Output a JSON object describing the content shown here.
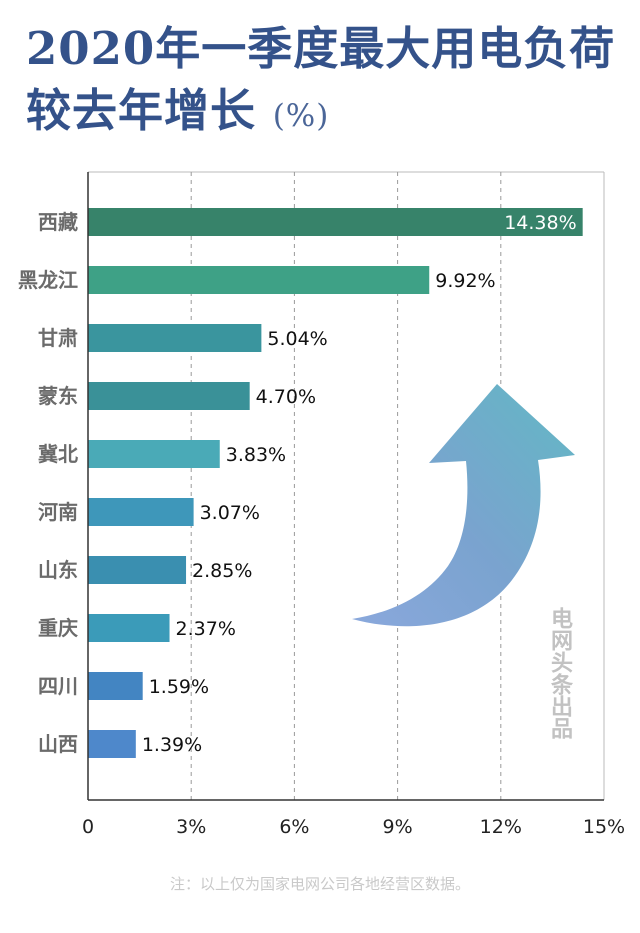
{
  "title": {
    "line1": "2020年一季度最大用电负荷",
    "line2": "较去年增长",
    "unit": "(%)"
  },
  "chart_data": {
    "type": "bar",
    "orientation": "horizontal",
    "categories": [
      "西藏",
      "黑龙江",
      "甘肃",
      "蒙东",
      "冀北",
      "河南",
      "山东",
      "重庆",
      "四川",
      "山西"
    ],
    "values": [
      14.38,
      9.92,
      5.04,
      4.7,
      3.83,
      3.07,
      2.85,
      2.37,
      1.59,
      1.39
    ],
    "value_labels": [
      "14.38%",
      "9.92%",
      "5.04%",
      "4.70%",
      "3.83%",
      "3.07%",
      "2.85%",
      "2.37%",
      "1.59%",
      "1.39%"
    ],
    "colors": [
      "#37836a",
      "#3ea186",
      "#3a959e",
      "#3a9198",
      "#4aaab7",
      "#3e97ba",
      "#3a8fb0",
      "#3b9bb9",
      "#4385c2",
      "#4e88cb"
    ],
    "xlim": [
      0,
      15
    ],
    "xticks": [
      0,
      3,
      6,
      9,
      12,
      15
    ],
    "xtick_labels": [
      "0",
      "3%",
      "6%",
      "9%",
      "12%",
      "15%"
    ],
    "grid": "vertical dashed"
  },
  "watermark": "电网头条出品",
  "note": "注：以上仅为国家电网公司各地经营区数据。",
  "colors": {
    "title": "#34528a",
    "axis": "#333333",
    "grid": "#9a9a9a"
  }
}
